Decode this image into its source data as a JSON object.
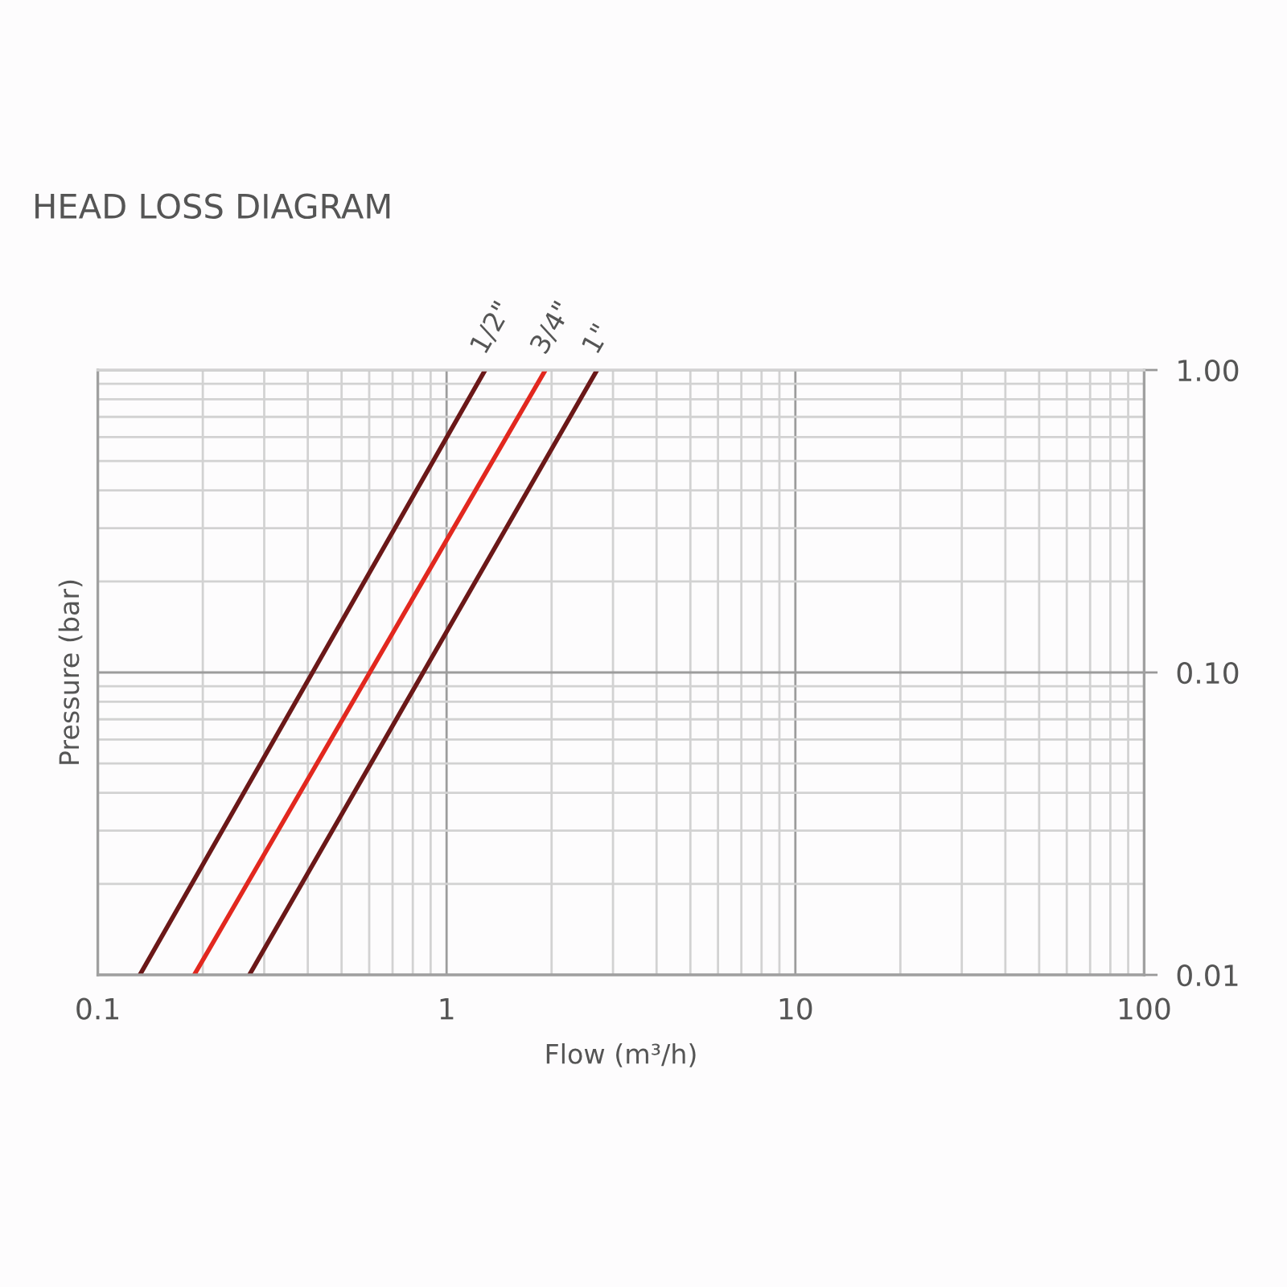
{
  "chart_data": {
    "type": "line",
    "title": "HEAD LOSS DIAGRAM",
    "xlabel": "Flow (m³/h)",
    "ylabel": "Pressure (bar)",
    "series": [
      {
        "name": "1/2\"",
        "color": "#6b1818",
        "x": [
          0.132,
          1.29
        ],
        "values": [
          0.01,
          1
        ]
      },
      {
        "name": "3/4\"",
        "color": "#e2281f",
        "x": [
          0.189,
          1.92
        ],
        "values": [
          0.01,
          1
        ]
      },
      {
        "name": "1\"",
        "color": "#6b1818",
        "x": [
          0.272,
          2.7
        ],
        "values": [
          0.01,
          1
        ]
      }
    ],
    "xlim": [
      0.1,
      100
    ],
    "ylim": [
      0.01,
      1
    ],
    "xticks": [
      0.1,
      1,
      10,
      100
    ],
    "yticks": [
      0.01,
      {
        "value": 0.1,
        "label": "0.10"
      },
      {
        "value": 1,
        "label": "1.00"
      }
    ],
    "log": "xy",
    "grid": true,
    "line_style": "solid"
  }
}
